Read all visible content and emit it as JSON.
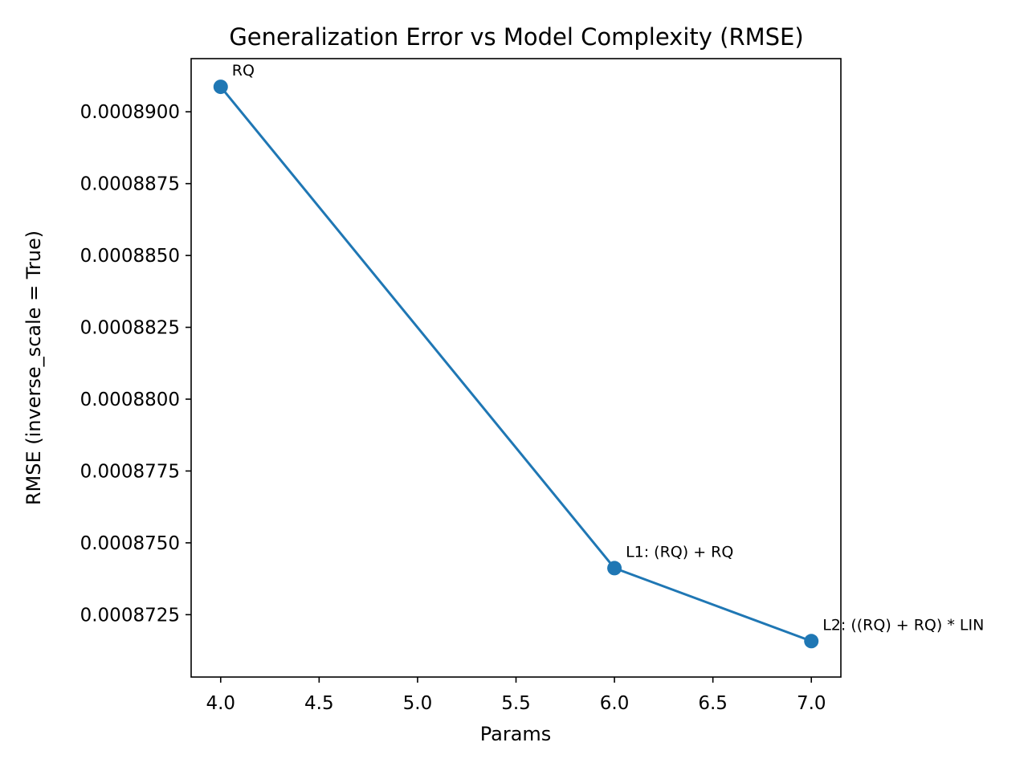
{
  "chart_data": {
    "type": "line",
    "title": "Generalization Error vs Model Complexity (RMSE)",
    "xlabel": "Params",
    "ylabel": "RMSE (inverse_scale = True)",
    "xlim": [
      3.85,
      7.15
    ],
    "ylim": [
      0.00087033,
      0.00089185
    ],
    "xticks": [
      4.0,
      4.5,
      5.0,
      5.5,
      6.0,
      6.5,
      7.0
    ],
    "xtick_labels": [
      "4.0",
      "4.5",
      "5.0",
      "5.5",
      "6.0",
      "6.5",
      "7.0"
    ],
    "yticks": [
      0.0008725,
      0.000875,
      0.0008775,
      0.00088,
      0.0008825,
      0.000885,
      0.0008875,
      0.00089
    ],
    "ytick_labels": [
      "0.0008725",
      "0.0008750",
      "0.0008775",
      "0.0008800",
      "0.0008825",
      "0.0008850",
      "0.0008875",
      "0.0008900"
    ],
    "grid": false,
    "series": [
      {
        "color": "#1f77b4",
        "x": [
          4,
          6,
          7
        ],
        "y": [
          0.00089087,
          0.00087412,
          0.00087158
        ],
        "labels": [
          "RQ",
          "L1: (RQ) + RQ",
          "L2: ((RQ) + RQ) * LIN"
        ]
      }
    ]
  }
}
